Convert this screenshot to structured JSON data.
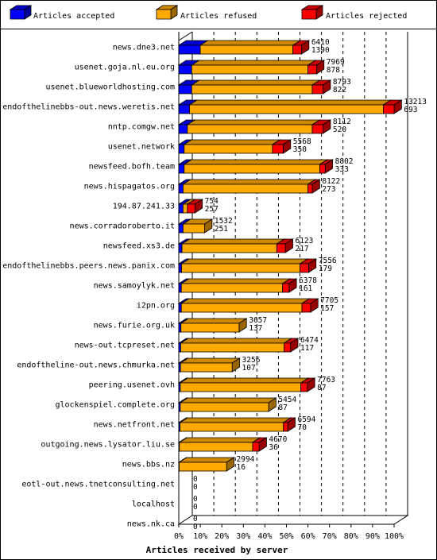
{
  "colors": {
    "accepted": "#0000ff",
    "refused": "#ffaa00",
    "rejected": "#ff0000"
  },
  "chart_data": {
    "type": "bar",
    "orientation": "horizontal",
    "stacked": true,
    "percent_scale": true,
    "three_d": true,
    "legend_position": "top",
    "grid": true,
    "xlabel": "Articles received by server",
    "ylabel": "",
    "xlim": [
      0,
      100
    ],
    "xticks": [
      "0%",
      "10%",
      "20%",
      "30%",
      "40%",
      "50%",
      "60%",
      "70%",
      "80%",
      "90%",
      "100%"
    ],
    "series": [
      {
        "name": "Articles accepted",
        "color": "#0000ff"
      },
      {
        "name": "Articles refused",
        "color": "#ffaa00"
      },
      {
        "name": "Articles rejected",
        "color": "#ff0000"
      }
    ],
    "rows": [
      {
        "server": "news.dne3.net",
        "accepted_pct": 10,
        "refused_pct": 43,
        "rejected_pct": 4,
        "label_top": "6410",
        "label_bottom": "1390"
      },
      {
        "server": "usenet.goja.nl.eu.org",
        "accepted_pct": 6,
        "refused_pct": 54,
        "rejected_pct": 4,
        "label_top": "7969",
        "label_bottom": "878"
      },
      {
        "server": "usenet.blueworldhosting.com",
        "accepted_pct": 6,
        "refused_pct": 56,
        "rejected_pct": 5,
        "label_top": "8793",
        "label_bottom": "822"
      },
      {
        "server": "endofthelinebbs-out.news.weretis.net",
        "accepted_pct": 5,
        "refused_pct": 90,
        "rejected_pct": 5,
        "label_top": "13213",
        "label_bottom": "693"
      },
      {
        "server": "nntp.comgw.net",
        "accepted_pct": 4,
        "refused_pct": 58,
        "rejected_pct": 5,
        "label_top": "8112",
        "label_bottom": "520"
      },
      {
        "server": "usenet.network",
        "accepted_pct": 2.5,
        "refused_pct": 41,
        "rejected_pct": 5,
        "label_top": "5568",
        "label_bottom": "350"
      },
      {
        "server": "newsfeed.bofh.team",
        "accepted_pct": 2.5,
        "refused_pct": 63,
        "rejected_pct": 2.5,
        "label_top": "8802",
        "label_bottom": "333"
      },
      {
        "server": "news.hispagatos.org",
        "accepted_pct": 2,
        "refused_pct": 58,
        "rejected_pct": 2,
        "label_top": "8122",
        "label_bottom": "273"
      },
      {
        "server": "194.87.241.33",
        "accepted_pct": 2,
        "refused_pct": 2,
        "rejected_pct": 3.5,
        "label_top": "754",
        "label_bottom": "257"
      },
      {
        "server": "news.corradoroberto.it",
        "accepted_pct": 2,
        "refused_pct": 10,
        "rejected_pct": 0,
        "label_top": "1532",
        "label_bottom": "251"
      },
      {
        "server": "newsfeed.xs3.de",
        "accepted_pct": 1.5,
        "refused_pct": 44,
        "rejected_pct": 4,
        "label_top": "6123",
        "label_bottom": "217"
      },
      {
        "server": "endofthelinebbs.peers.news.panix.com",
        "accepted_pct": 1.3,
        "refused_pct": 55,
        "rejected_pct": 4,
        "label_top": "7556",
        "label_bottom": "179"
      },
      {
        "server": "news.samoylyk.net",
        "accepted_pct": 1.2,
        "refused_pct": 47,
        "rejected_pct": 3,
        "label_top": "6378",
        "label_bottom": "161"
      },
      {
        "server": "i2pn.org",
        "accepted_pct": 1.2,
        "refused_pct": 56,
        "rejected_pct": 4,
        "label_top": "7705",
        "label_bottom": "157"
      },
      {
        "server": "news.furie.org.uk",
        "accepted_pct": 1,
        "refused_pct": 27,
        "rejected_pct": 0,
        "label_top": "3657",
        "label_bottom": "137"
      },
      {
        "server": "news-out.tcpreset.net",
        "accepted_pct": 0.9,
        "refused_pct": 48,
        "rejected_pct": 3,
        "label_top": "6474",
        "label_bottom": "117"
      },
      {
        "server": "endoftheline-out.news.chmurka.net",
        "accepted_pct": 0.8,
        "refused_pct": 24,
        "rejected_pct": 0,
        "label_top": "3256",
        "label_bottom": "107"
      },
      {
        "server": "peering.usenet.ovh",
        "accepted_pct": 0.7,
        "refused_pct": 56,
        "rejected_pct": 3,
        "label_top": "7763",
        "label_bottom": "87"
      },
      {
        "server": "glockenspiel.complete.org",
        "accepted_pct": 0.7,
        "refused_pct": 41,
        "rejected_pct": 0,
        "label_top": "5454",
        "label_bottom": "87"
      },
      {
        "server": "news.netfront.net",
        "accepted_pct": 0.6,
        "refused_pct": 48,
        "rejected_pct": 2,
        "label_top": "6594",
        "label_bottom": "70"
      },
      {
        "server": "outgoing.news.lysator.liu.se",
        "accepted_pct": 0.3,
        "refused_pct": 34,
        "rejected_pct": 3,
        "label_top": "4670",
        "label_bottom": "36"
      },
      {
        "server": "news.bbs.nz",
        "accepted_pct": 0.2,
        "refused_pct": 22,
        "rejected_pct": 0,
        "label_top": "2994",
        "label_bottom": "16"
      },
      {
        "server": "eotl-out.news.tnetconsulting.net",
        "accepted_pct": 0,
        "refused_pct": 0,
        "rejected_pct": 0,
        "label_top": "0",
        "label_bottom": "0"
      },
      {
        "server": "localhost",
        "accepted_pct": 0,
        "refused_pct": 0,
        "rejected_pct": 0,
        "label_top": "0",
        "label_bottom": "0"
      },
      {
        "server": "news.nk.ca",
        "accepted_pct": 0,
        "refused_pct": 0,
        "rejected_pct": 0,
        "label_top": "0",
        "label_bottom": "0"
      }
    ]
  }
}
